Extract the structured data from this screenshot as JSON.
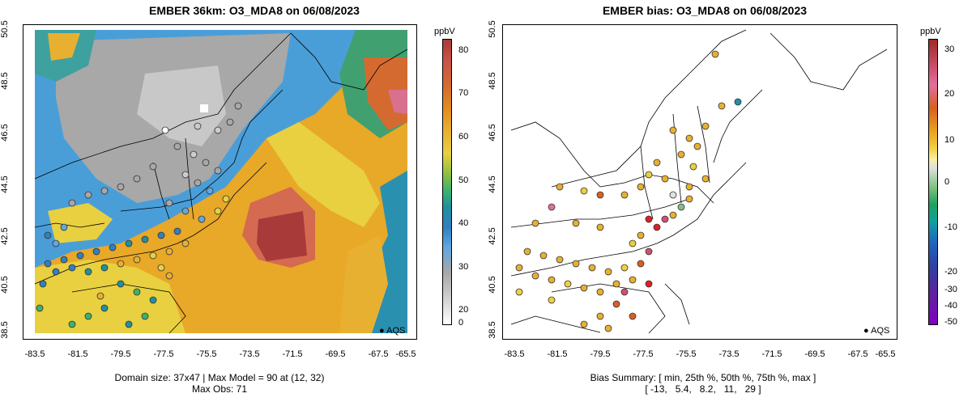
{
  "left_panel": {
    "title": "EMBER 36km: O3_MDA8 on 06/08/2023",
    "y_ticks": [
      "50.5",
      "48.5",
      "46.5",
      "44.5",
      "42.5",
      "40.5",
      "38.5"
    ],
    "x_ticks": [
      "-83.5",
      "-81.5",
      "-79.5",
      "-77.5",
      "-75.5",
      "-73.5",
      "-71.5",
      "-69.5",
      "-67.5",
      "-65.5"
    ],
    "footer_line1": "Domain size: 37x47 | Max Model = 90 at (12, 32)",
    "footer_line2": "Max Obs: 71",
    "legend_label": "AQS",
    "colorbar": {
      "unit": "ppbV",
      "labels": [
        "80",
        "70",
        "60",
        "50",
        "40",
        "30",
        "20",
        "0"
      ],
      "values": [
        80,
        70,
        60,
        50,
        40,
        30,
        20,
        0
      ],
      "colors": [
        "#a83a3a",
        "#c8524a",
        "#d46a30",
        "#e08c20",
        "#e8b030",
        "#e8d040",
        "#90c040",
        "#3fb070",
        "#2090a0",
        "#3080c0",
        "#60a8e0",
        "#a8a8a8",
        "#cccccc",
        "#ffffff"
      ]
    }
  },
  "right_panel": {
    "title": "EMBER bias: O3_MDA8 on 06/08/2023",
    "y_ticks": [
      "50.5",
      "48.5",
      "46.5",
      "44.5",
      "42.5",
      "40.5",
      "38.5"
    ],
    "x_ticks": [
      "-83.5",
      "-81.5",
      "-79.5",
      "-77.5",
      "-75.5",
      "-73.5",
      "-71.5",
      "-69.5",
      "-67.5",
      "-65.5"
    ],
    "footer_line1": "Bias Summary: [ min, 25th %, 50th %, 75th %, max ]",
    "footer_line2": "[ -13,   5.4,   8.2,   11,   29 ]",
    "legend_label": "AQS",
    "colorbar": {
      "unit": "ppbV",
      "labels": [
        "30",
        "20",
        "10",
        "0",
        "-10",
        "-20",
        "-30",
        "-40",
        "-50"
      ],
      "values": [
        30,
        20,
        10,
        0,
        -10,
        -20,
        -30,
        -40,
        -50
      ],
      "colors": [
        "#a02828",
        "#d05070",
        "#e0709a",
        "#d86020",
        "#e8a020",
        "#f0d040",
        "#f8f0a0",
        "#e0e0e0",
        "#80c080",
        "#20a060",
        "#10a0a0",
        "#2060c0",
        "#3040a0",
        "#6020a0",
        "#8000c0"
      ]
    }
  }
}
